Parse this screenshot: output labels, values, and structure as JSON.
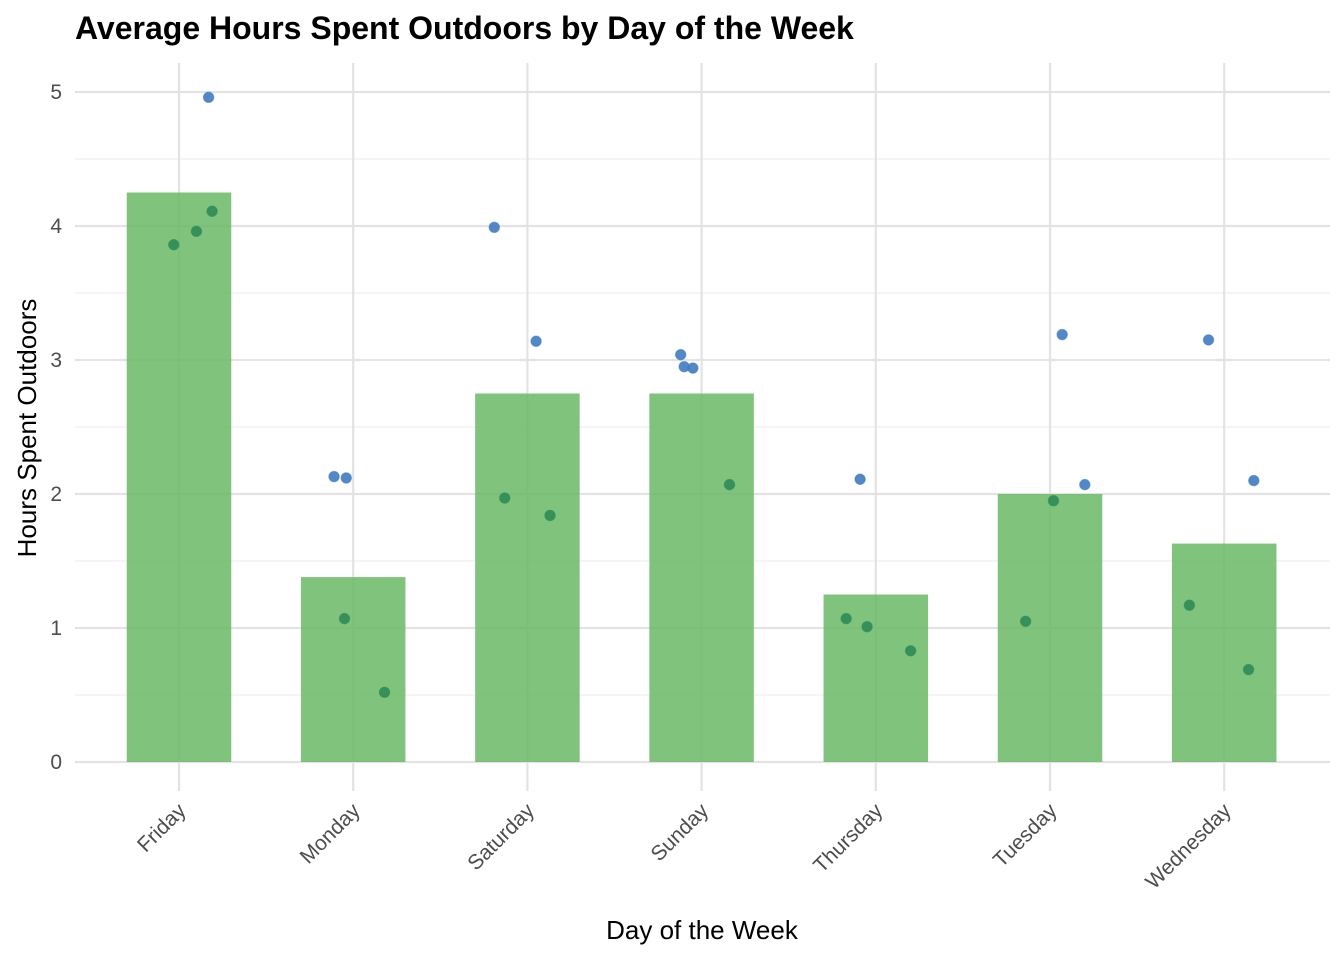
{
  "chart_data": {
    "type": "bar",
    "title": "Average Hours Spent Outdoors by Day of the Week",
    "xlabel": "Day of the Week",
    "ylabel": "Hours Spent Outdoors",
    "categories": [
      "Friday",
      "Monday",
      "Saturday",
      "Sunday",
      "Thursday",
      "Tuesday",
      "Wednesday"
    ],
    "yticks": [
      0,
      1,
      2,
      3,
      4,
      5
    ],
    "ylim": [
      -0.22,
      5.22
    ],
    "grid": true,
    "series": [
      {
        "values": [
          4.25,
          1.38,
          2.75,
          2.75,
          1.25,
          2.0,
          1.63
        ]
      }
    ],
    "points": [
      {
        "category": "Friday",
        "y": 4.96,
        "offset": 0.17,
        "group": "above"
      },
      {
        "category": "Friday",
        "y": 3.86,
        "offset": -0.03,
        "group": "below"
      },
      {
        "category": "Friday",
        "y": 3.96,
        "offset": 0.1,
        "group": "below"
      },
      {
        "category": "Friday",
        "y": 4.11,
        "offset": 0.19,
        "group": "below"
      },
      {
        "category": "Monday",
        "y": 2.13,
        "offset": -0.11,
        "group": "above"
      },
      {
        "category": "Monday",
        "y": 2.12,
        "offset": -0.04,
        "group": "above"
      },
      {
        "category": "Monday",
        "y": 1.07,
        "offset": -0.05,
        "group": "below"
      },
      {
        "category": "Monday",
        "y": 0.52,
        "offset": 0.18,
        "group": "below"
      },
      {
        "category": "Saturday",
        "y": 3.99,
        "offset": -0.19,
        "group": "above"
      },
      {
        "category": "Saturday",
        "y": 3.14,
        "offset": 0.05,
        "group": "above"
      },
      {
        "category": "Saturday",
        "y": 1.97,
        "offset": -0.13,
        "group": "below"
      },
      {
        "category": "Saturday",
        "y": 1.84,
        "offset": 0.13,
        "group": "below"
      },
      {
        "category": "Sunday",
        "y": 3.04,
        "offset": -0.12,
        "group": "above"
      },
      {
        "category": "Sunday",
        "y": 2.95,
        "offset": -0.1,
        "group": "above"
      },
      {
        "category": "Sunday",
        "y": 2.94,
        "offset": -0.05,
        "group": "above"
      },
      {
        "category": "Sunday",
        "y": 2.07,
        "offset": 0.16,
        "group": "below"
      },
      {
        "category": "Thursday",
        "y": 2.11,
        "offset": -0.09,
        "group": "above"
      },
      {
        "category": "Thursday",
        "y": 1.07,
        "offset": -0.17,
        "group": "below"
      },
      {
        "category": "Thursday",
        "y": 1.01,
        "offset": -0.05,
        "group": "below"
      },
      {
        "category": "Thursday",
        "y": 0.83,
        "offset": 0.2,
        "group": "below"
      },
      {
        "category": "Tuesday",
        "y": 3.19,
        "offset": 0.07,
        "group": "above"
      },
      {
        "category": "Tuesday",
        "y": 2.07,
        "offset": 0.2,
        "group": "above"
      },
      {
        "category": "Tuesday",
        "y": 1.95,
        "offset": 0.02,
        "group": "below"
      },
      {
        "category": "Tuesday",
        "y": 1.05,
        "offset": -0.14,
        "group": "below"
      },
      {
        "category": "Wednesday",
        "y": 3.15,
        "offset": -0.09,
        "group": "above"
      },
      {
        "category": "Wednesday",
        "y": 2.1,
        "offset": 0.17,
        "group": "above"
      },
      {
        "category": "Wednesday",
        "y": 1.17,
        "offset": -0.2,
        "group": "below"
      },
      {
        "category": "Wednesday",
        "y": 0.69,
        "offset": 0.14,
        "group": "below"
      }
    ],
    "colors": {
      "bar": "#6ab866",
      "point_above": "#3f7bbf",
      "point_below": "#2e8b57",
      "grid_major": "#e3e3e3",
      "grid_minor": "#efefef",
      "tick_text": "#4d4d4d"
    }
  }
}
